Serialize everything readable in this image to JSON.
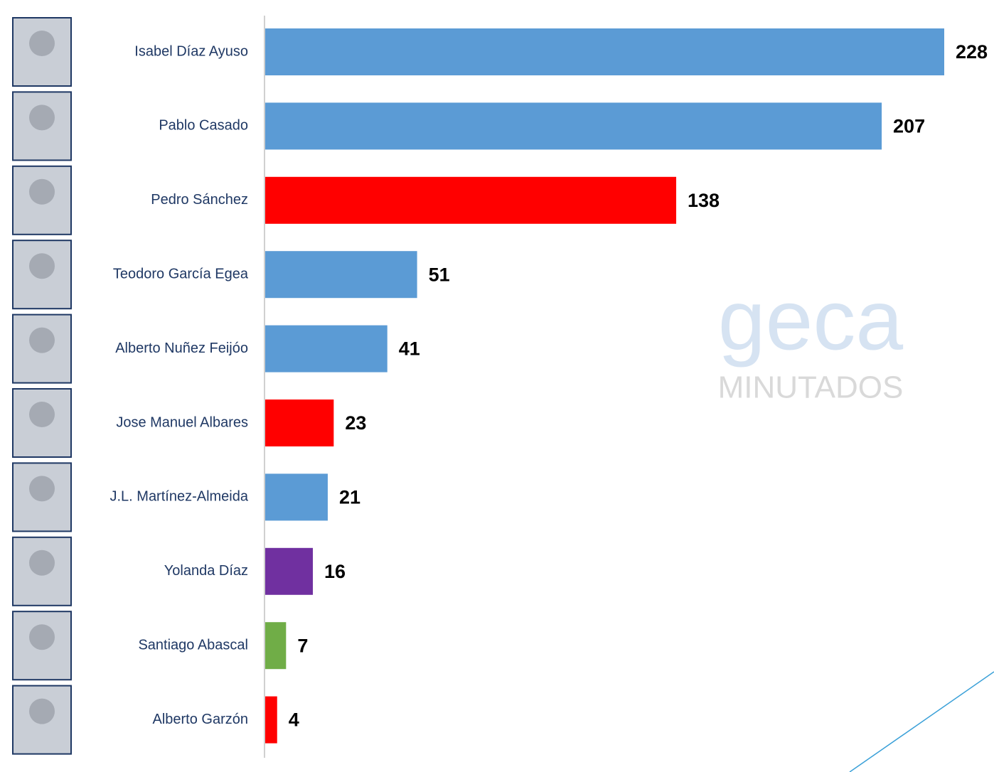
{
  "chart_data": {
    "type": "barh",
    "categories": [
      "Isabel Díaz Ayuso",
      "Pablo Casado",
      "Pedro Sánchez",
      "Teodoro García Egea",
      "Alberto Nuñez Feijóo",
      "Jose Manuel Albares",
      "J.L. Martínez-Almeida",
      "Yolanda Díaz",
      "Santiago Abascal",
      "Alberto Garzón"
    ],
    "values": [
      228,
      207,
      138,
      51,
      41,
      23,
      21,
      16,
      7,
      4
    ],
    "colors": [
      "#5b9bd5",
      "#5b9bd5",
      "#ff0000",
      "#5b9bd5",
      "#5b9bd5",
      "#ff0000",
      "#5b9bd5",
      "#7030a0",
      "#70ad47",
      "#ff0000"
    ],
    "xlim": [
      0,
      228
    ],
    "watermark": {
      "logo": "geca",
      "text": "MINUTADOS"
    }
  }
}
